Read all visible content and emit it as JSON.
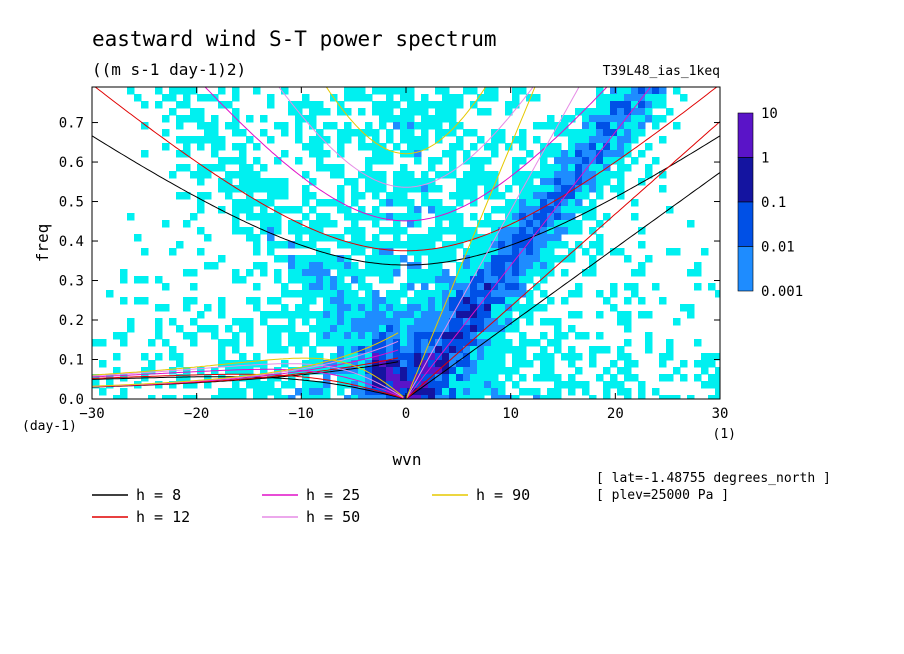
{
  "title": "eastward wind S-T power spectrum",
  "units": "((m s-1 day-1)2)",
  "model": "T39L48_ias_1keq",
  "info": [
    "[ lat=-1.48755 degrees_north ]",
    "[ plev=25000 Pa ]"
  ],
  "chart_data": {
    "type": "heatmap",
    "xlabel": "wvn",
    "xunit": "(1)",
    "ylabel": "freq",
    "yunit": "(day-1)",
    "xlim": [
      -30,
      30
    ],
    "ylim": [
      0,
      0.79
    ],
    "xticks": [
      -30,
      -20,
      -10,
      0,
      10,
      20,
      30
    ],
    "yticks": [
      0,
      0.1,
      0.2,
      0.3,
      0.4,
      0.5,
      0.6,
      0.7
    ],
    "colorbar": {
      "levels": [
        "10",
        "1",
        "0.1",
        "0.01",
        "0.001"
      ],
      "colors": [
        "#5a14c8",
        "#1414a0",
        "#0050e6",
        "#1e8cff",
        "#00f0f0"
      ]
    },
    "dispersion_curves": [
      {
        "label": "h =  8",
        "h": 8,
        "color": "#000000"
      },
      {
        "label": "h = 12",
        "h": 12,
        "color": "#e00000"
      },
      {
        "label": "h = 25",
        "h": 25,
        "color": "#e010c8"
      },
      {
        "label": "h = 50",
        "h": 50,
        "color": "#e68ce6"
      },
      {
        "label": "h = 90",
        "h": 90,
        "color": "#e6c800"
      }
    ]
  }
}
